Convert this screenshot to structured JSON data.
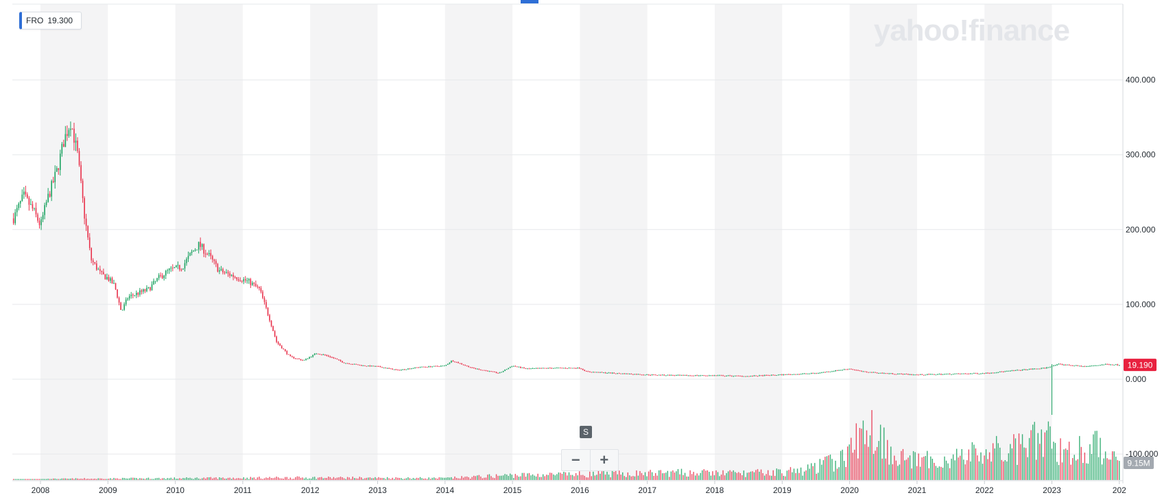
{
  "ticker": {
    "symbol": "FRO",
    "value": "19.300"
  },
  "watermark": "yahoo!finance",
  "last_price_label": "19.190",
  "volume_label": "9.15M",
  "colors": {
    "up": "#1aa260",
    "down": "#e8304a",
    "axis_text": "#232a31",
    "band": "#f4f4f5",
    "last_price_bg": "#e8213f",
    "volume_bg": "#a3a9b0",
    "accent": "#2f6fd6"
  },
  "controls": {
    "zoom_out_icon": "minus-icon",
    "zoom_in_icon": "plus-icon",
    "series_marker": "S"
  },
  "chart_data": {
    "type": "candlestick",
    "title": "",
    "x_range": [
      2007.6,
      2024.0
    ],
    "x_tick_labels": [
      "2008",
      "2009",
      "2010",
      "2011",
      "2012",
      "2013",
      "2014",
      "2015",
      "2016",
      "2017",
      "2018",
      "2019",
      "2020",
      "2021",
      "2022",
      "2023",
      "202"
    ],
    "y_range": [
      -110,
      500
    ],
    "y_tick_labels": [
      "400.000",
      "300.000",
      "200.000",
      "100.000",
      "0.000",
      "-100.000"
    ],
    "y_tick_values": [
      400,
      300,
      200,
      100,
      0,
      -100
    ],
    "price_anchors": [
      [
        2007.6,
        215
      ],
      [
        2007.75,
        245
      ],
      [
        2007.9,
        225
      ],
      [
        2008.0,
        205
      ],
      [
        2008.1,
        240
      ],
      [
        2008.25,
        280
      ],
      [
        2008.35,
        320
      ],
      [
        2008.45,
        345
      ],
      [
        2008.55,
        300
      ],
      [
        2008.65,
        220
      ],
      [
        2008.75,
        160
      ],
      [
        2008.9,
        140
      ],
      [
        2009.0,
        135
      ],
      [
        2009.1,
        125
      ],
      [
        2009.2,
        90
      ],
      [
        2009.3,
        110
      ],
      [
        2009.45,
        115
      ],
      [
        2009.6,
        120
      ],
      [
        2009.75,
        135
      ],
      [
        2009.9,
        145
      ],
      [
        2010.0,
        148
      ],
      [
        2010.1,
        150
      ],
      [
        2010.25,
        170
      ],
      [
        2010.35,
        180
      ],
      [
        2010.5,
        165
      ],
      [
        2010.65,
        145
      ],
      [
        2010.8,
        140
      ],
      [
        2010.95,
        135
      ],
      [
        2011.1,
        130
      ],
      [
        2011.25,
        120
      ],
      [
        2011.4,
        80
      ],
      [
        2011.5,
        50
      ],
      [
        2011.7,
        30
      ],
      [
        2011.9,
        25
      ],
      [
        2012.1,
        35
      ],
      [
        2012.3,
        30
      ],
      [
        2012.5,
        22
      ],
      [
        2012.8,
        18
      ],
      [
        2013.0,
        17
      ],
      [
        2013.3,
        12
      ],
      [
        2013.6,
        16
      ],
      [
        2014.0,
        18
      ],
      [
        2014.1,
        25
      ],
      [
        2014.4,
        15
      ],
      [
        2014.8,
        8
      ],
      [
        2015.0,
        18
      ],
      [
        2015.2,
        14
      ],
      [
        2015.6,
        15
      ],
      [
        2016.0,
        15
      ],
      [
        2016.1,
        10
      ],
      [
        2016.5,
        8
      ],
      [
        2017.0,
        6
      ],
      [
        2017.5,
        5
      ],
      [
        2018.0,
        5
      ],
      [
        2018.5,
        4
      ],
      [
        2019.0,
        6
      ],
      [
        2019.5,
        8
      ],
      [
        2020.0,
        14
      ],
      [
        2020.2,
        10
      ],
      [
        2020.5,
        8
      ],
      [
        2021.0,
        6
      ],
      [
        2021.5,
        7
      ],
      [
        2022.0,
        8
      ],
      [
        2022.5,
        12
      ],
      [
        2022.9,
        15
      ],
      [
        2023.1,
        20
      ],
      [
        2023.5,
        17
      ],
      [
        2023.8,
        20
      ],
      [
        2024.0,
        19.2
      ]
    ],
    "volume_peaks": [
      [
        2007.6,
        1
      ],
      [
        2008.5,
        2
      ],
      [
        2011.9,
        4
      ],
      [
        2014.0,
        3
      ],
      [
        2015.0,
        8
      ],
      [
        2016.5,
        10
      ],
      [
        2017.5,
        12
      ],
      [
        2018.5,
        11
      ],
      [
        2019.3,
        15
      ],
      [
        2019.9,
        35
      ],
      [
        2020.3,
        90
      ],
      [
        2020.7,
        40
      ],
      [
        2021.0,
        30
      ],
      [
        2021.5,
        35
      ],
      [
        2022.0,
        45
      ],
      [
        2022.5,
        50
      ],
      [
        2022.9,
        70
      ],
      [
        2023.2,
        45
      ],
      [
        2023.6,
        55
      ],
      [
        2024.0,
        40
      ]
    ],
    "last_price": 19.19,
    "last_volume": "9.15M"
  }
}
